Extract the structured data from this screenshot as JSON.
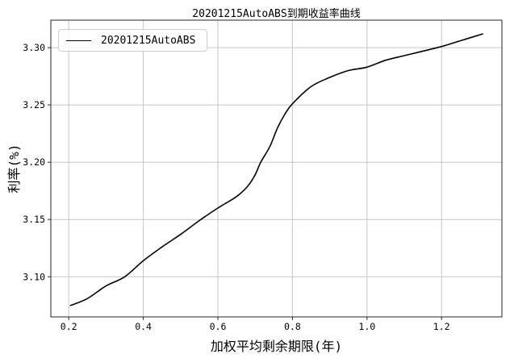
{
  "chart_data": {
    "type": "line",
    "title": "20201215AutoABS到期收益率曲线",
    "xlabel": "加权平均剩余期限(年)",
    "ylabel": "利率(%)",
    "grid": true,
    "legend": {
      "position": "upper-left",
      "entries": [
        {
          "label": "20201215AutoABS",
          "line_color": "#000000"
        }
      ]
    },
    "axes": {
      "xlim": [
        0.152,
        1.362
      ],
      "ylim": [
        3.065,
        3.324
      ],
      "xticks": [
        0.2,
        0.4,
        0.6,
        0.8,
        1.0,
        1.2
      ],
      "xtick_labels": [
        "0.2",
        "0.4",
        "0.6",
        "0.8",
        "1.0",
        "1.2"
      ],
      "yticks": [
        3.1,
        3.15,
        3.2,
        3.25,
        3.3
      ],
      "ytick_labels": [
        "3.10",
        "3.15",
        "3.20",
        "3.25",
        "3.30"
      ]
    },
    "series": [
      {
        "name": "20201215AutoABS",
        "color": "#000000",
        "x": [
          0.205,
          0.25,
          0.3,
          0.35,
          0.4,
          0.45,
          0.5,
          0.55,
          0.6,
          0.65,
          0.68,
          0.7,
          0.715,
          0.74,
          0.76,
          0.78,
          0.8,
          0.85,
          0.9,
          0.95,
          1.0,
          1.05,
          1.1,
          1.15,
          1.2,
          1.25,
          1.31
        ],
        "y": [
          3.075,
          3.081,
          3.092,
          3.1,
          3.114,
          3.126,
          3.137,
          3.149,
          3.16,
          3.17,
          3.179,
          3.189,
          3.2,
          3.214,
          3.23,
          3.242,
          3.251,
          3.266,
          3.274,
          3.28,
          3.283,
          3.289,
          3.293,
          3.297,
          3.301,
          3.306,
          3.312
        ]
      }
    ],
    "colors": {
      "grid": "#c6c6c6",
      "spine": "#262626",
      "line": "#000000",
      "text": "#000000",
      "background": "#ffffff"
    }
  }
}
